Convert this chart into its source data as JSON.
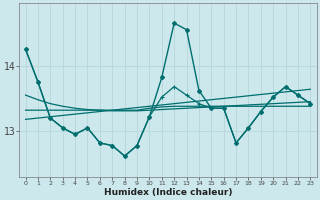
{
  "xlabel": "Humidex (Indice chaleur)",
  "background_color": "#cce8ec",
  "grid_color": "#b8d8dc",
  "line_color": "#006e6e",
  "x_values": [
    0,
    1,
    2,
    3,
    4,
    5,
    6,
    7,
    8,
    9,
    10,
    11,
    12,
    13,
    14,
    15,
    16,
    17,
    18,
    19,
    20,
    21,
    22,
    23
  ],
  "y_main": [
    14.25,
    13.75,
    13.2,
    13.05,
    12.95,
    13.05,
    12.82,
    12.78,
    12.62,
    12.78,
    13.22,
    13.82,
    14.65,
    14.55,
    13.62,
    13.35,
    13.35,
    12.82,
    13.05,
    13.3,
    13.52,
    13.68,
    13.55,
    13.42
  ],
  "y_line2": [
    14.25,
    13.75,
    13.2,
    13.05,
    12.95,
    13.05,
    12.82,
    12.78,
    12.62,
    12.78,
    13.22,
    13.52,
    13.68,
    13.55,
    13.42,
    13.35,
    13.35,
    12.82,
    13.05,
    13.3,
    13.52,
    13.68,
    13.55,
    13.42
  ],
  "y_trend_flat": [
    13.32,
    13.32,
    13.32,
    13.32,
    13.32,
    13.32,
    13.32,
    13.32,
    13.32,
    13.32,
    13.35,
    13.37,
    13.38,
    13.38,
    13.38,
    13.38,
    13.38,
    13.38,
    13.38,
    13.38,
    13.38,
    13.38,
    13.38,
    13.38
  ],
  "y_trend_rise": [
    13.18,
    13.2,
    13.22,
    13.24,
    13.26,
    13.28,
    13.3,
    13.32,
    13.34,
    13.36,
    13.38,
    13.4,
    13.42,
    13.44,
    13.46,
    13.48,
    13.5,
    13.52,
    13.54,
    13.56,
    13.58,
    13.6,
    13.62,
    13.64
  ],
  "y_trend_conv": [
    13.55,
    13.48,
    13.42,
    13.38,
    13.35,
    13.33,
    13.32,
    13.31,
    13.31,
    13.31,
    13.32,
    13.33,
    13.34,
    13.35,
    13.36,
    13.37,
    13.38,
    13.39,
    13.4,
    13.41,
    13.42,
    13.43,
    13.44,
    13.45
  ],
  "yticks": [
    13,
    14
  ],
  "ylim": [
    12.3,
    14.95
  ],
  "xlim": [
    -0.5,
    23.5
  ],
  "xtick_labels": [
    "0",
    "1",
    "2",
    "3",
    "4",
    "5",
    "6",
    "7",
    "8",
    "9",
    "10",
    "11",
    "12",
    "13",
    "14",
    "15",
    "16",
    "17",
    "18",
    "19",
    "20",
    "21",
    "22",
    "23"
  ],
  "xlabel_fontsize": 6.5,
  "ytick_fontsize": 7,
  "xtick_fontsize": 4.5
}
